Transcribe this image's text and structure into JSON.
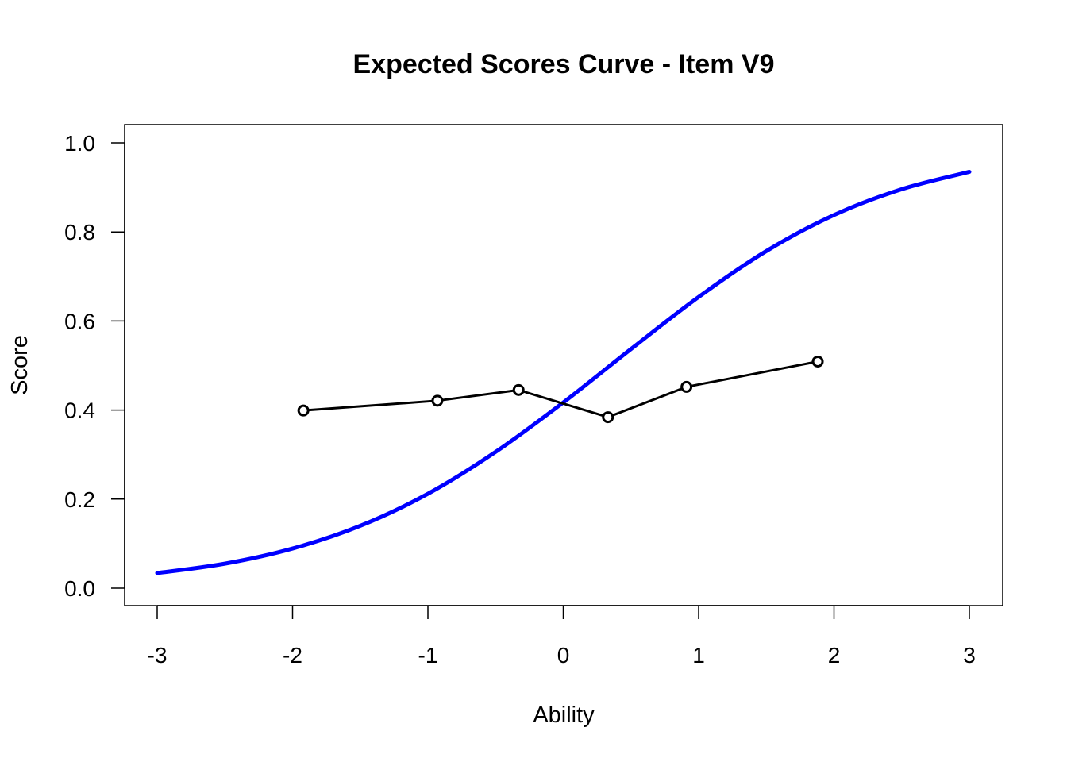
{
  "chart_data": {
    "type": "line",
    "title": "Expected Scores Curve - Item  V9",
    "xlabel": "Ability",
    "ylabel": "Score",
    "xlim": [
      -3,
      3
    ],
    "ylim": [
      0,
      1
    ],
    "x_ticks": [
      "-3",
      "-2",
      "-1",
      "0",
      "1",
      "2",
      "3"
    ],
    "y_ticks": [
      "0.0",
      "0.2",
      "0.4",
      "0.6",
      "0.8",
      "1.0"
    ],
    "grid": false,
    "legend": "none",
    "series": [
      {
        "style": "line",
        "color": "#0000ff",
        "x": [
          -3.0,
          -2.5,
          -2.0,
          -1.5,
          -1.0,
          -0.5,
          0.0,
          0.5,
          1.0,
          1.5,
          2.0,
          2.5,
          3.0
        ],
        "y": [
          0.034,
          0.055,
          0.089,
          0.14,
          0.212,
          0.306,
          0.417,
          0.537,
          0.654,
          0.757,
          0.838,
          0.896,
          0.935
        ]
      },
      {
        "style": "line-points",
        "color": "#000000",
        "x": [
          -1.92,
          -0.93,
          -0.33,
          0.33,
          0.91,
          1.88
        ],
        "y": [
          0.399,
          0.421,
          0.445,
          0.384,
          0.452,
          0.509
        ]
      }
    ]
  }
}
